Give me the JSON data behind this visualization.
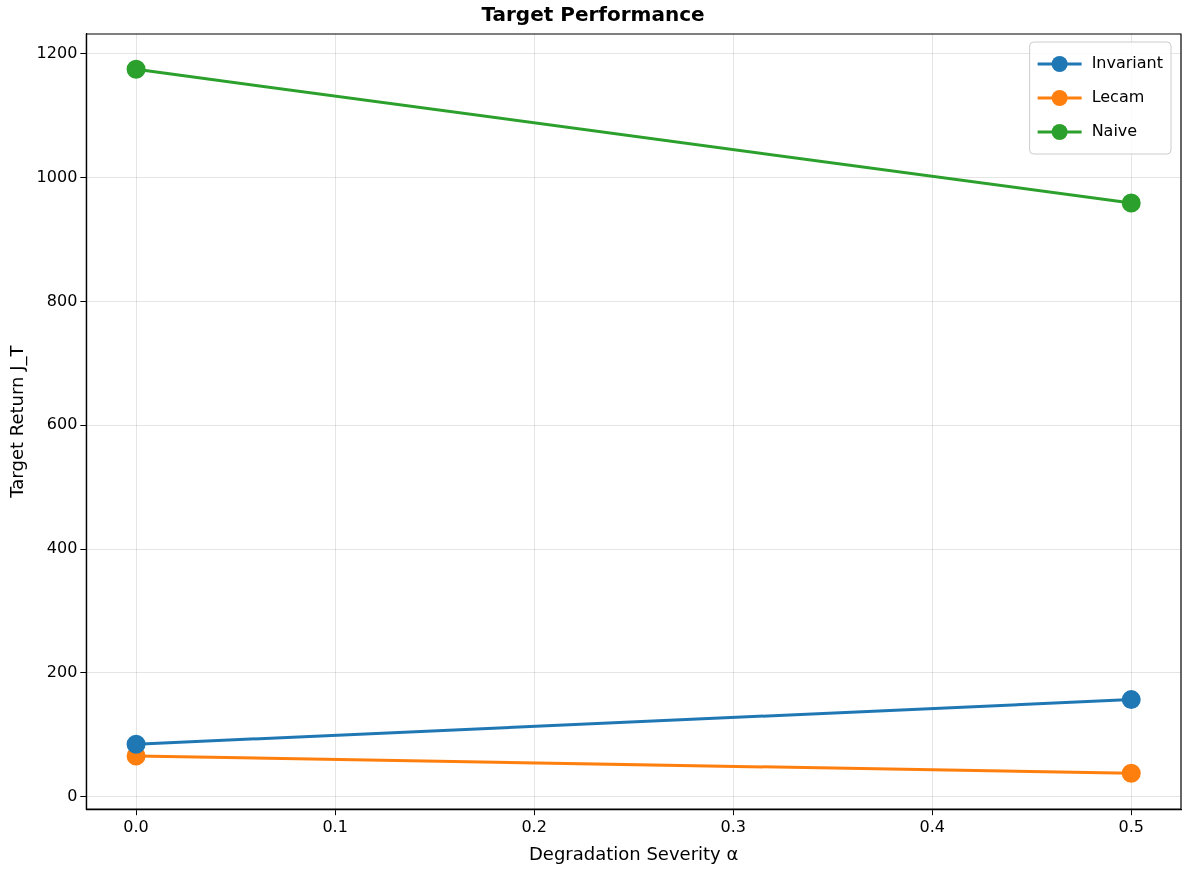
{
  "chart_data": {
    "type": "line",
    "title": "Target Performance",
    "xlabel": "Degradation Severity α",
    "ylabel": "Target Return J_T",
    "x": [
      0,
      0.5
    ],
    "series": [
      {
        "name": "Invariant",
        "color": "#1f77b4",
        "values": [
          85,
          157
        ]
      },
      {
        "name": "Lecam",
        "color": "#ff7f0e",
        "values": [
          66,
          38
        ]
      },
      {
        "name": "Naive",
        "color": "#2ca02c",
        "values": [
          1175,
          959
        ]
      }
    ],
    "xlim": [
      -0.025,
      0.525
    ],
    "ylim": [
      -20,
      1232
    ],
    "xticks": [
      {
        "value": 0,
        "label": "0.0"
      },
      0.1,
      0.2,
      0.3,
      0.4,
      0.5
    ],
    "yticks": [
      0,
      200,
      400,
      600,
      800,
      1000,
      1200
    ],
    "grid": true,
    "legend": "top right",
    "marker": "circle",
    "line_style": "solid"
  }
}
